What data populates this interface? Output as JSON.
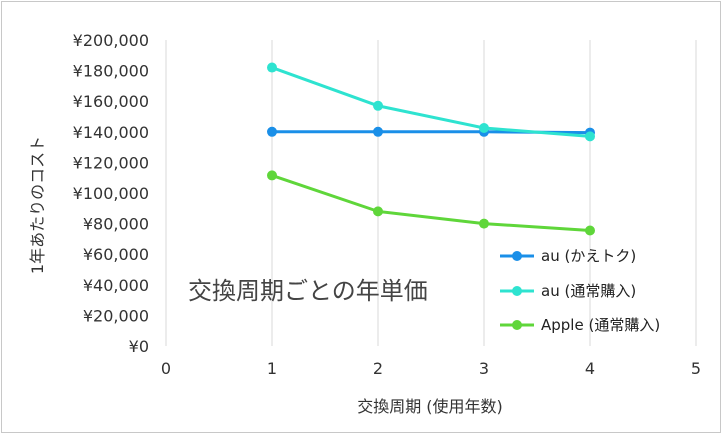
{
  "chart_data": {
    "type": "line",
    "xlabel": "交換周期 (使用年数)",
    "ylabel": "1年あたりのコスト",
    "annotation": "交換周期ごとの年単価",
    "xlim": [
      0,
      5
    ],
    "ylim": [
      0,
      200000
    ],
    "x_ticks": [
      "0",
      "1",
      "2",
      "3",
      "4",
      "5"
    ],
    "y_ticks": [
      "¥0",
      "¥20,000",
      "¥40,000",
      "¥60,000",
      "¥80,000",
      "¥100,000",
      "¥120,000",
      "¥140,000",
      "¥160,000",
      "¥180,000",
      "¥200,000"
    ],
    "grid": "vertical",
    "legend_position": "bottom-right",
    "series": [
      {
        "name": "au (かえトク)",
        "color": "#1a8fe8",
        "x": [
          1,
          2,
          3,
          4
        ],
        "values": [
          140000,
          140000,
          140000,
          139500
        ]
      },
      {
        "name": "au (通常購入)",
        "color": "#2ee3d0",
        "x": [
          1,
          2,
          3,
          4
        ],
        "values": [
          182000,
          157000,
          142500,
          137000
        ]
      },
      {
        "name": "Apple (通常購入)",
        "color": "#5fd63a",
        "x": [
          1,
          2,
          3,
          4
        ],
        "values": [
          111500,
          88000,
          80000,
          75500
        ]
      }
    ]
  }
}
